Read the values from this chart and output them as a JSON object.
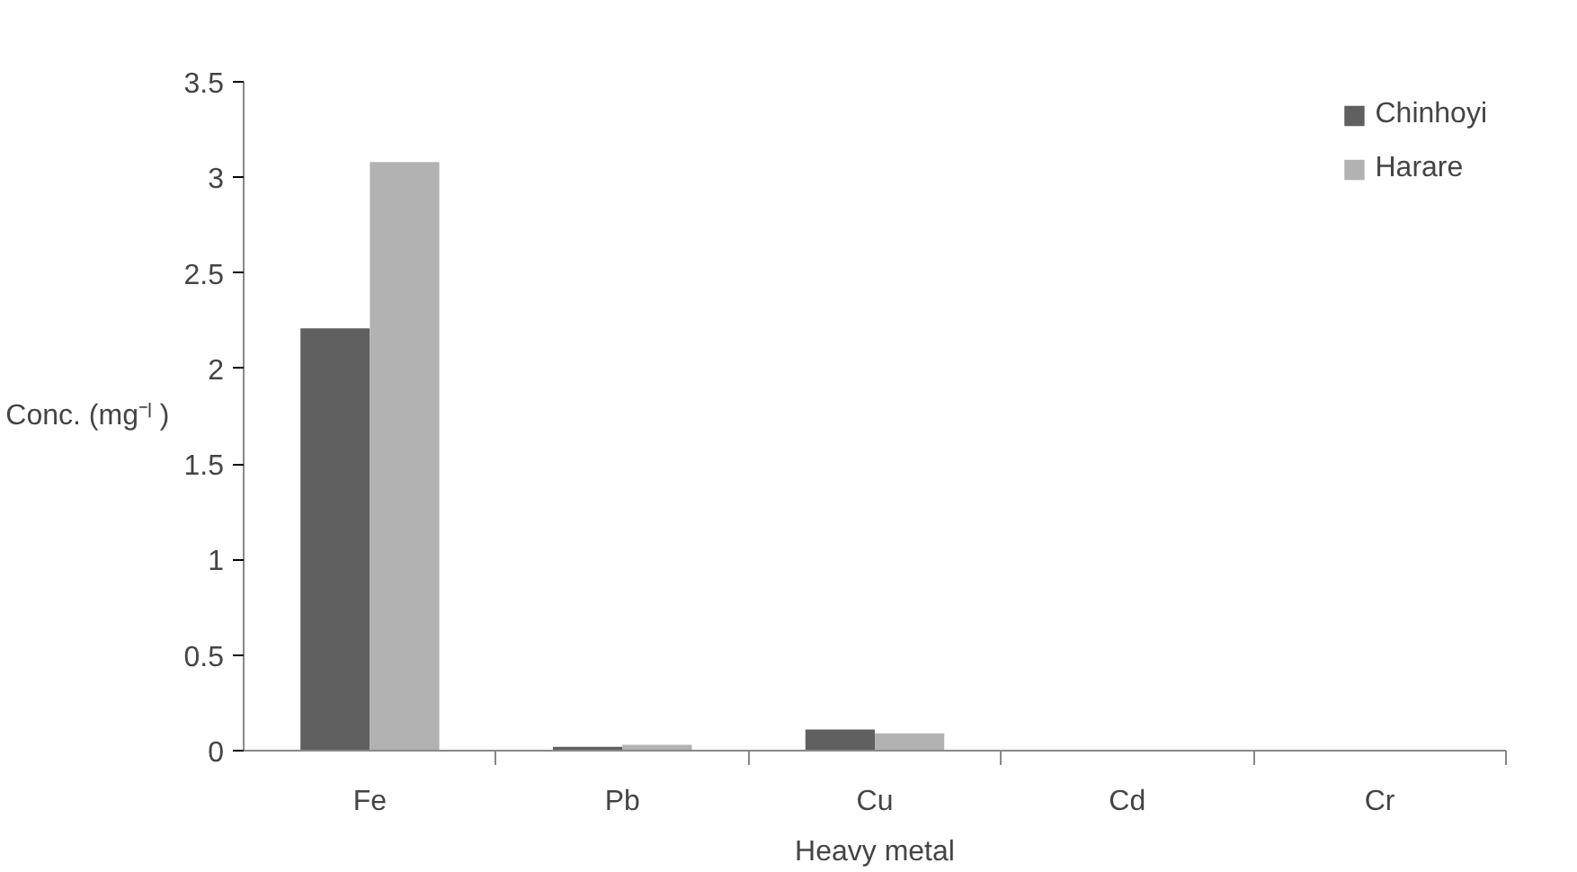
{
  "chart_data": {
    "type": "bar",
    "categories": [
      "Fe",
      "Pb",
      "Cu",
      "Cd",
      "Cr"
    ],
    "series": [
      {
        "name": "Chinhoyi",
        "color": "#606060",
        "values": [
          2.21,
          0.02,
          0.11,
          0,
          0
        ]
      },
      {
        "name": "Harare",
        "color": "#b2b2b2",
        "values": [
          3.08,
          0.03,
          0.09,
          0,
          0
        ]
      }
    ],
    "xlabel": "Heavy metal",
    "ylabel": "Conc. (mg⁻ˡ )",
    "ylim": [
      0,
      3.5
    ],
    "yticks": [
      0,
      0.5,
      1,
      1.5,
      2,
      2.5,
      3,
      3.5
    ],
    "grid": false,
    "legend": "top right"
  }
}
